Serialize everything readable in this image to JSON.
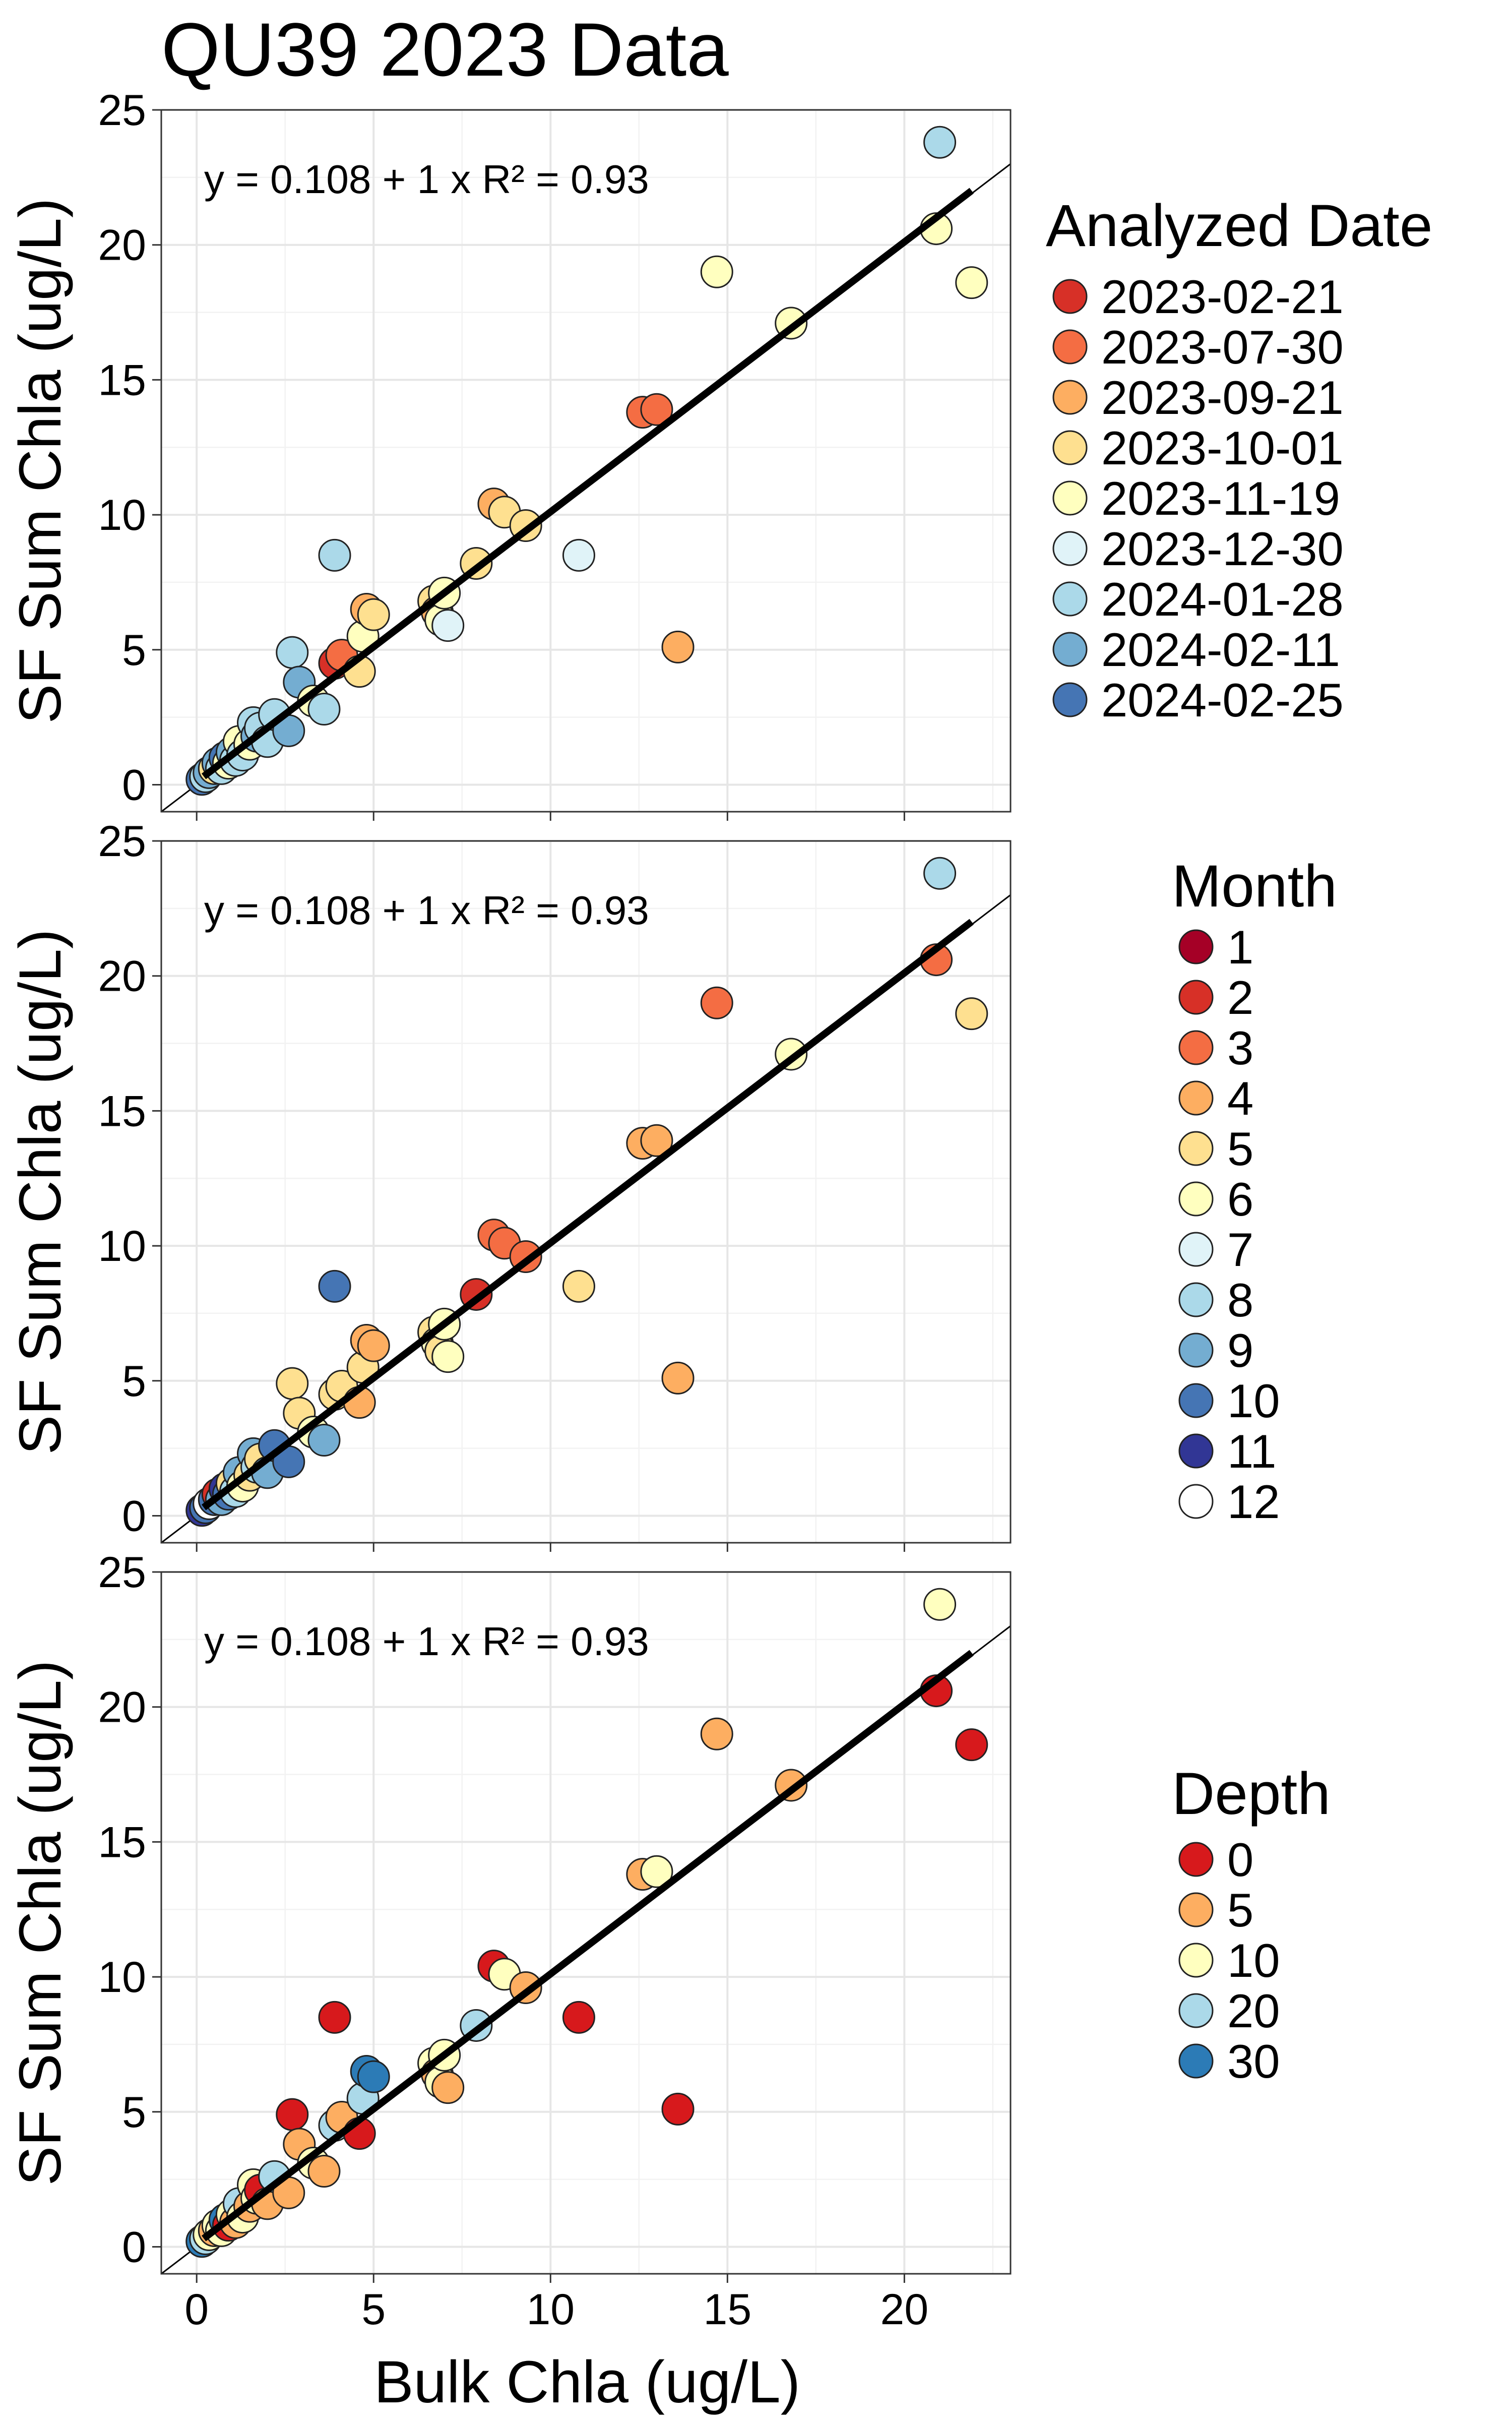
{
  "chart_data": {
    "type": "scatter",
    "title": "QU39 2023 Data",
    "xlabel": "Bulk Chla (ug/L)",
    "ylabel": "SF Sum Chla (ug/L)",
    "xlim": [
      -1,
      23
    ],
    "ylim": [
      -1,
      25
    ],
    "x_ticks": [
      "0",
      "5",
      "10",
      "15",
      "20"
    ],
    "y_ticks": [
      "0",
      "5",
      "10",
      "15",
      "20",
      "25"
    ],
    "grid": true,
    "fit_line": {
      "intercept": 0.108,
      "slope": 1,
      "x_range": [
        0.2,
        21.9
      ]
    },
    "reference_line": {
      "intercept": 0,
      "slope": 1
    },
    "points": [
      [
        0.15,
        0.2
      ],
      [
        0.25,
        0.3
      ],
      [
        0.35,
        0.45
      ],
      [
        0.5,
        0.6
      ],
      [
        0.6,
        0.8
      ],
      [
        0.7,
        0.6
      ],
      [
        0.8,
        1.0
      ],
      [
        0.9,
        0.8
      ],
      [
        1.0,
        1.2
      ],
      [
        1.1,
        0.9
      ],
      [
        1.2,
        1.6
      ],
      [
        1.3,
        1.1
      ],
      [
        1.5,
        1.5
      ],
      [
        1.6,
        2.3
      ],
      [
        1.7,
        1.8
      ],
      [
        1.8,
        2.1
      ],
      [
        2.0,
        1.6
      ],
      [
        2.2,
        2.6
      ],
      [
        2.6,
        2.0
      ],
      [
        2.7,
        4.9
      ],
      [
        2.9,
        3.8
      ],
      [
        3.3,
        3.1
      ],
      [
        3.6,
        2.8
      ],
      [
        3.9,
        8.5
      ],
      [
        3.9,
        4.5
      ],
      [
        4.1,
        4.8
      ],
      [
        4.6,
        4.2
      ],
      [
        4.7,
        5.5
      ],
      [
        4.8,
        6.5
      ],
      [
        5.0,
        6.3
      ],
      [
        6.7,
        6.8
      ],
      [
        6.8,
        6.4
      ],
      [
        6.9,
        6.1
      ],
      [
        7.0,
        7.1
      ],
      [
        7.1,
        5.9
      ],
      [
        7.9,
        8.2
      ],
      [
        8.4,
        10.4
      ],
      [
        8.7,
        10.1
      ],
      [
        9.3,
        9.6
      ],
      [
        10.8,
        8.5
      ],
      [
        12.6,
        13.8
      ],
      [
        13.0,
        13.9
      ],
      [
        13.6,
        5.1
      ],
      [
        14.7,
        19.0
      ],
      [
        16.8,
        17.1
      ],
      [
        20.9,
        20.6
      ],
      [
        21.0,
        23.8
      ],
      [
        21.9,
        18.6
      ]
    ],
    "panels": [
      {
        "equation": "y = 0.108 + 1 x  R² = 0.93",
        "legend_title": "Analyzed Date",
        "legend": [
          {
            "label": "2023-02-21",
            "color": "#d73027"
          },
          {
            "label": "2023-07-30",
            "color": "#f46d43"
          },
          {
            "label": "2023-09-21",
            "color": "#fdae61"
          },
          {
            "label": "2023-10-01",
            "color": "#fee090"
          },
          {
            "label": "2023-11-19",
            "color": "#ffffbf"
          },
          {
            "label": "2023-12-30",
            "color": "#e0f3f8"
          },
          {
            "label": "2024-01-28",
            "color": "#abd9e9"
          },
          {
            "label": "2024-02-11",
            "color": "#74add1"
          },
          {
            "label": "2024-02-25",
            "color": "#4575b4"
          }
        ],
        "point_groups": [
          8,
          6,
          7,
          3,
          7,
          6,
          8,
          4,
          7,
          6,
          4,
          6,
          4,
          6,
          7,
          6,
          6,
          6,
          7,
          6,
          7,
          4,
          6,
          6,
          0,
          1,
          3,
          4,
          2,
          3,
          3,
          2,
          4,
          4,
          5,
          3,
          2,
          3,
          3,
          5,
          1,
          1,
          2,
          4,
          4,
          4,
          6,
          4
        ]
      },
      {
        "equation": "y = 0.108 + 1 x  R² = 0.93",
        "legend_title": "Month",
        "legend": [
          {
            "label": "1",
            "color": "#a50026"
          },
          {
            "label": "2",
            "color": "#d73027"
          },
          {
            "label": "3",
            "color": "#f46d43"
          },
          {
            "label": "4",
            "color": "#fdae61"
          },
          {
            "label": "5",
            "color": "#fee090"
          },
          {
            "label": "6",
            "color": "#ffffbf"
          },
          {
            "label": "7",
            "color": "#e0f3f8"
          },
          {
            "label": "8",
            "color": "#abd9e9"
          },
          {
            "label": "9",
            "color": "#74add1"
          },
          {
            "label": "10",
            "color": "#4575b4"
          },
          {
            "label": "11",
            "color": "#313695"
          },
          {
            "label": "12",
            "color": "#ffffff"
          }
        ],
        "point_groups": [
          10,
          9,
          11,
          9,
          1,
          8,
          10,
          9,
          4,
          7,
          8,
          5,
          4,
          8,
          7,
          4,
          8,
          9,
          9,
          4,
          4,
          5,
          8,
          9,
          4,
          4,
          3,
          4,
          3,
          3,
          4,
          5,
          4,
          5,
          5,
          1,
          2,
          2,
          2,
          4,
          3,
          3,
          3,
          2,
          5,
          2,
          7,
          4
        ]
      },
      {
        "equation": "y = 0.108 + 1 x  R² = 0.93",
        "legend_title": "Depth",
        "legend": [
          {
            "label": "0",
            "color": "#d7191c"
          },
          {
            "label": "5",
            "color": "#fdae61"
          },
          {
            "label": "10",
            "color": "#ffffbf"
          },
          {
            "label": "20",
            "color": "#abd9e9"
          },
          {
            "label": "30",
            "color": "#2c7bb6"
          }
        ],
        "point_groups": [
          4,
          3,
          2,
          1,
          2,
          2,
          4,
          0,
          2,
          1,
          3,
          2,
          1,
          2,
          2,
          0,
          1,
          3,
          1,
          0,
          1,
          2,
          1,
          0,
          3,
          1,
          0,
          3,
          4,
          4,
          2,
          1,
          2,
          2,
          1,
          3,
          0,
          2,
          1,
          0,
          1,
          2,
          0,
          1,
          1,
          0,
          2,
          0
        ]
      }
    ]
  }
}
